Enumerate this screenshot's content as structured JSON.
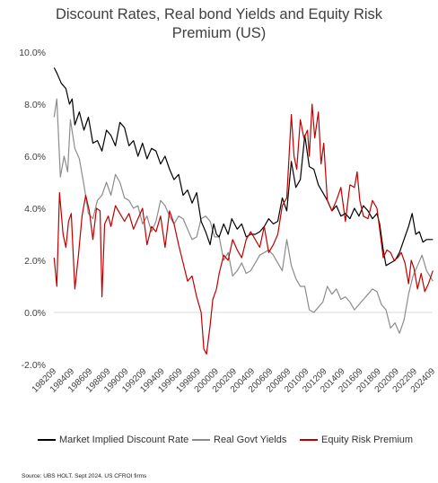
{
  "chart_data": {
    "type": "line",
    "title_line1": "Discount Rates, Real bond Yields and Equity Risk",
    "title_line2": "Premium (US)",
    "ylim": [
      -2.0,
      10.0
    ],
    "y_ticks": [
      "10.0%",
      "8.0%",
      "6.0%",
      "4.0%",
      "2.0%",
      "0.0%",
      "-2.0%"
    ],
    "x_ticks": [
      "198209",
      "198409",
      "198609",
      "198809",
      "199009",
      "199209",
      "199409",
      "199609",
      "199809",
      "200009",
      "200209",
      "200409",
      "200609",
      "200809",
      "201009",
      "201209",
      "201409",
      "201609",
      "201809",
      "202009",
      "202209",
      "202409"
    ],
    "series": [
      {
        "name": "Market Implied Discount Rate",
        "color": "#000000",
        "points": [
          [
            1982.7,
            9.4
          ],
          [
            1983.0,
            9.2
          ],
          [
            1983.5,
            8.8
          ],
          [
            1984.0,
            8.6
          ],
          [
            1984.4,
            8.0
          ],
          [
            1984.7,
            8.2
          ],
          [
            1985.0,
            7.2
          ],
          [
            1985.5,
            7.7
          ],
          [
            1986.0,
            7.0
          ],
          [
            1986.5,
            7.5
          ],
          [
            1987.0,
            6.5
          ],
          [
            1987.5,
            6.6
          ],
          [
            1988.0,
            6.2
          ],
          [
            1988.5,
            7.0
          ],
          [
            1989.0,
            6.8
          ],
          [
            1989.5,
            6.4
          ],
          [
            1990.0,
            7.3
          ],
          [
            1990.5,
            7.1
          ],
          [
            1991.0,
            6.4
          ],
          [
            1991.5,
            6.6
          ],
          [
            1992.0,
            6.0
          ],
          [
            1992.5,
            6.5
          ],
          [
            1993.0,
            5.9
          ],
          [
            1993.5,
            6.3
          ],
          [
            1994.0,
            6.2
          ],
          [
            1994.5,
            5.7
          ],
          [
            1995.0,
            6.0
          ],
          [
            1995.5,
            5.5
          ],
          [
            1996.0,
            5.1
          ],
          [
            1996.5,
            5.3
          ],
          [
            1997.0,
            4.5
          ],
          [
            1997.5,
            4.7
          ],
          [
            1998.0,
            4.2
          ],
          [
            1998.5,
            4.6
          ],
          [
            1999.0,
            3.5
          ],
          [
            1999.5,
            3.1
          ],
          [
            2000.0,
            2.6
          ],
          [
            2000.4,
            3.4
          ],
          [
            2000.7,
            3.0
          ],
          [
            2001.0,
            2.9
          ],
          [
            2001.5,
            3.4
          ],
          [
            2002.0,
            3.0
          ],
          [
            2002.4,
            3.6
          ],
          [
            2003.0,
            3.2
          ],
          [
            2003.5,
            3.4
          ],
          [
            2004.0,
            2.9
          ],
          [
            2004.5,
            3.0
          ],
          [
            2005.0,
            3.0
          ],
          [
            2005.5,
            3.1
          ],
          [
            2006.0,
            3.3
          ],
          [
            2006.5,
            3.6
          ],
          [
            2007.0,
            3.4
          ],
          [
            2007.5,
            3.5
          ],
          [
            2008.0,
            4.4
          ],
          [
            2008.5,
            3.9
          ],
          [
            2009.0,
            5.8
          ],
          [
            2009.5,
            4.8
          ],
          [
            2010.0,
            5.1
          ],
          [
            2010.5,
            6.8
          ],
          [
            2011.0,
            5.6
          ],
          [
            2011.5,
            5.5
          ],
          [
            2012.0,
            4.9
          ],
          [
            2012.5,
            4.6
          ],
          [
            2013.0,
            4.3
          ],
          [
            2013.5,
            3.9
          ],
          [
            2014.0,
            4.1
          ],
          [
            2014.5,
            3.7
          ],
          [
            2015.0,
            3.8
          ],
          [
            2015.5,
            3.6
          ],
          [
            2016.0,
            4.0
          ],
          [
            2016.5,
            3.7
          ],
          [
            2017.0,
            4.1
          ],
          [
            2017.5,
            3.9
          ],
          [
            2018.0,
            3.6
          ],
          [
            2018.5,
            3.8
          ],
          [
            2018.8,
            3.4
          ],
          [
            2019.2,
            2.4
          ],
          [
            2019.5,
            1.8
          ],
          [
            2020.0,
            1.9
          ],
          [
            2020.5,
            2.0
          ],
          [
            2021.0,
            2.3
          ],
          [
            2021.5,
            2.8
          ],
          [
            2022.0,
            3.3
          ],
          [
            2022.4,
            3.8
          ],
          [
            2022.8,
            3.0
          ],
          [
            2023.2,
            3.1
          ],
          [
            2023.6,
            2.7
          ],
          [
            2024.0,
            2.8
          ],
          [
            2024.7,
            2.8
          ]
        ]
      },
      {
        "name": "Real Govt Yields",
        "color": "#8c8c8c",
        "points": [
          [
            1982.7,
            7.5
          ],
          [
            1983.0,
            8.2
          ],
          [
            1983.4,
            5.2
          ],
          [
            1983.8,
            6.0
          ],
          [
            1984.2,
            5.4
          ],
          [
            1984.5,
            7.4
          ],
          [
            1985.0,
            6.3
          ],
          [
            1985.5,
            5.9
          ],
          [
            1986.0,
            4.9
          ],
          [
            1986.5,
            3.8
          ],
          [
            1987.0,
            3.6
          ],
          [
            1987.5,
            4.3
          ],
          [
            1988.0,
            4.5
          ],
          [
            1988.5,
            5.0
          ],
          [
            1989.0,
            4.5
          ],
          [
            1989.5,
            5.3
          ],
          [
            1990.0,
            5.0
          ],
          [
            1990.5,
            4.4
          ],
          [
            1991.0,
            4.3
          ],
          [
            1991.5,
            4.0
          ],
          [
            1992.0,
            4.1
          ],
          [
            1992.5,
            3.4
          ],
          [
            1993.0,
            3.7
          ],
          [
            1993.5,
            3.1
          ],
          [
            1994.0,
            3.5
          ],
          [
            1994.5,
            4.3
          ],
          [
            1995.0,
            4.1
          ],
          [
            1995.5,
            3.7
          ],
          [
            1996.0,
            3.4
          ],
          [
            1996.5,
            3.7
          ],
          [
            1997.0,
            3.6
          ],
          [
            1997.5,
            3.2
          ],
          [
            1998.0,
            2.8
          ],
          [
            1998.5,
            2.9
          ],
          [
            1999.0,
            3.6
          ],
          [
            1999.5,
            3.7
          ],
          [
            2000.0,
            3.5
          ],
          [
            2000.5,
            2.9
          ],
          [
            2001.0,
            2.9
          ],
          [
            2001.5,
            2.0
          ],
          [
            2002.0,
            2.3
          ],
          [
            2002.5,
            1.4
          ],
          [
            2003.0,
            1.6
          ],
          [
            2003.5,
            1.9
          ],
          [
            2004.0,
            1.5
          ],
          [
            2004.5,
            1.6
          ],
          [
            2005.0,
            1.9
          ],
          [
            2005.5,
            2.2
          ],
          [
            2006.0,
            2.3
          ],
          [
            2006.5,
            2.4
          ],
          [
            2007.0,
            2.2
          ],
          [
            2007.5,
            1.9
          ],
          [
            2008.0,
            1.6
          ],
          [
            2008.5,
            2.8
          ],
          [
            2009.0,
            1.8
          ],
          [
            2009.5,
            1.3
          ],
          [
            2010.0,
            1.0
          ],
          [
            2010.5,
            1.0
          ],
          [
            2011.0,
            0.1
          ],
          [
            2011.5,
            0.0
          ],
          [
            2012.0,
            0.2
          ],
          [
            2012.5,
            0.4
          ],
          [
            2013.0,
            1.0
          ],
          [
            2013.5,
            0.7
          ],
          [
            2014.0,
            0.9
          ],
          [
            2014.5,
            0.5
          ],
          [
            2015.0,
            0.6
          ],
          [
            2015.5,
            0.4
          ],
          [
            2016.0,
            0.1
          ],
          [
            2016.5,
            0.3
          ],
          [
            2017.0,
            0.5
          ],
          [
            2017.5,
            0.7
          ],
          [
            2018.0,
            0.9
          ],
          [
            2018.5,
            0.8
          ],
          [
            2019.0,
            0.3
          ],
          [
            2019.5,
            0.1
          ],
          [
            2020.0,
            -0.6
          ],
          [
            2020.5,
            -0.4
          ],
          [
            2021.0,
            -0.8
          ],
          [
            2021.5,
            -0.3
          ],
          [
            2022.0,
            0.7
          ],
          [
            2022.5,
            1.4
          ],
          [
            2023.0,
            1.8
          ],
          [
            2023.5,
            2.2
          ],
          [
            2024.0,
            1.6
          ],
          [
            2024.7,
            1.2
          ]
        ]
      },
      {
        "name": "Equity Risk Premium",
        "color": "#c00000",
        "points": [
          [
            1982.7,
            2.1
          ],
          [
            1983.0,
            1.0
          ],
          [
            1983.3,
            4.6
          ],
          [
            1983.7,
            3.0
          ],
          [
            1984.0,
            2.5
          ],
          [
            1984.3,
            3.5
          ],
          [
            1984.6,
            3.8
          ],
          [
            1985.0,
            0.9
          ],
          [
            1985.4,
            2.2
          ],
          [
            1985.8,
            3.7
          ],
          [
            1986.2,
            4.5
          ],
          [
            1986.6,
            3.9
          ],
          [
            1987.0,
            2.8
          ],
          [
            1987.4,
            4.0
          ],
          [
            1987.8,
            3.9
          ],
          [
            1988.0,
            0.6
          ],
          [
            1988.3,
            3.4
          ],
          [
            1988.7,
            3.7
          ],
          [
            1989.0,
            3.3
          ],
          [
            1989.5,
            4.1
          ],
          [
            1990.0,
            3.8
          ],
          [
            1990.5,
            3.5
          ],
          [
            1991.0,
            3.8
          ],
          [
            1991.5,
            3.2
          ],
          [
            1992.0,
            3.6
          ],
          [
            1992.5,
            4.0
          ],
          [
            1993.0,
            2.6
          ],
          [
            1993.5,
            3.3
          ],
          [
            1994.0,
            3.1
          ],
          [
            1994.5,
            3.7
          ],
          [
            1995.0,
            2.5
          ],
          [
            1995.5,
            3.9
          ],
          [
            1996.0,
            3.4
          ],
          [
            1996.5,
            2.6
          ],
          [
            1997.0,
            1.9
          ],
          [
            1997.5,
            1.2
          ],
          [
            1998.0,
            1.4
          ],
          [
            1998.5,
            0.6
          ],
          [
            1999.0,
            0.0
          ],
          [
            1999.3,
            -1.4
          ],
          [
            1999.6,
            -1.6
          ],
          [
            2000.0,
            -0.5
          ],
          [
            2000.3,
            0.5
          ],
          [
            2000.7,
            0.9
          ],
          [
            2001.0,
            1.5
          ],
          [
            2001.5,
            2.2
          ],
          [
            2002.0,
            2.0
          ],
          [
            2002.5,
            2.8
          ],
          [
            2003.0,
            2.4
          ],
          [
            2003.5,
            2.1
          ],
          [
            2004.0,
            2.8
          ],
          [
            2004.5,
            3.1
          ],
          [
            2005.0,
            2.8
          ],
          [
            2005.5,
            2.5
          ],
          [
            2006.0,
            3.3
          ],
          [
            2006.5,
            2.3
          ],
          [
            2007.0,
            2.6
          ],
          [
            2007.5,
            3.0
          ],
          [
            2008.0,
            4.1
          ],
          [
            2008.5,
            4.4
          ],
          [
            2009.0,
            7.6
          ],
          [
            2009.3,
            6.0
          ],
          [
            2009.6,
            5.5
          ],
          [
            2010.0,
            7.4
          ],
          [
            2010.4,
            6.7
          ],
          [
            2010.8,
            7.0
          ],
          [
            2011.0,
            6.0
          ],
          [
            2011.3,
            8.0
          ],
          [
            2011.6,
            6.7
          ],
          [
            2012.0,
            7.7
          ],
          [
            2012.3,
            5.7
          ],
          [
            2012.6,
            6.5
          ],
          [
            2013.0,
            4.3
          ],
          [
            2013.5,
            3.9
          ],
          [
            2014.0,
            4.3
          ],
          [
            2014.5,
            4.8
          ],
          [
            2015.0,
            3.5
          ],
          [
            2015.5,
            4.9
          ],
          [
            2016.0,
            4.8
          ],
          [
            2016.3,
            5.4
          ],
          [
            2016.6,
            4.3
          ],
          [
            2017.0,
            3.7
          ],
          [
            2017.5,
            3.6
          ],
          [
            2018.0,
            4.3
          ],
          [
            2018.5,
            4.0
          ],
          [
            2018.8,
            3.2
          ],
          [
            2019.2,
            2.1
          ],
          [
            2019.6,
            2.4
          ],
          [
            2020.0,
            2.3
          ],
          [
            2020.4,
            2.0
          ],
          [
            2020.8,
            2.1
          ],
          [
            2021.2,
            2.3
          ],
          [
            2021.6,
            1.9
          ],
          [
            2022.0,
            1.1
          ],
          [
            2022.3,
            2.0
          ],
          [
            2022.6,
            1.7
          ],
          [
            2023.0,
            0.9
          ],
          [
            2023.4,
            1.5
          ],
          [
            2023.8,
            0.8
          ],
          [
            2024.2,
            1.1
          ],
          [
            2024.7,
            1.6
          ]
        ]
      }
    ]
  },
  "legend": {
    "items": [
      {
        "label": "Market Implied Discount Rate",
        "color": "#000000"
      },
      {
        "label": "Real Govt Yields",
        "color": "#8c8c8c"
      },
      {
        "label": "Equity Risk Premium",
        "color": "#c00000"
      }
    ]
  },
  "source": "Source: UBS HOLT. Sept 2024. US CFROI firms"
}
